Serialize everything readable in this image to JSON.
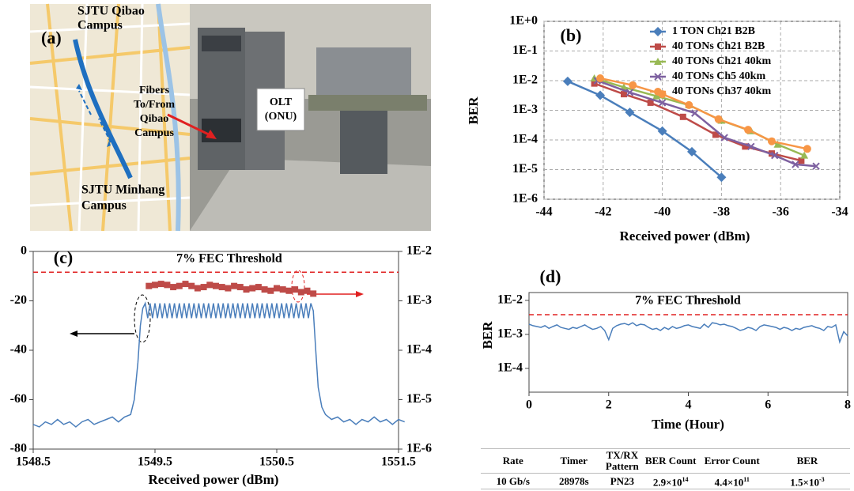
{
  "photo": {
    "label": "(a)",
    "texts": [
      "SJTU Qibao",
      "Campus",
      "Fibers",
      "To/From",
      "Qibao",
      "Campus",
      "OLT",
      "(ONU)",
      "SJTU Minhang",
      "Campus"
    ]
  },
  "chart_data": [
    {
      "type": "line",
      "label": "(b)",
      "xlabel": "Received power (dBm)",
      "ylabel": "BER",
      "ylog": true,
      "grid": true,
      "legend": "upper right",
      "xlim": [
        -44,
        -34
      ],
      "xticks": [
        -44,
        -42,
        -40,
        -38,
        -36,
        -34
      ],
      "ylim": [
        1e-06,
        1
      ],
      "yticks": [
        {
          "value": 1,
          "label": "1E+0"
        },
        {
          "value": 0.1,
          "label": "1E-1"
        },
        {
          "value": 0.01,
          "label": "1E-2"
        },
        {
          "value": 0.001,
          "label": "1E-3"
        },
        {
          "value": 0.0001,
          "label": "1E-4"
        },
        {
          "value": 1e-05,
          "label": "1E-5"
        },
        {
          "value": 1e-06,
          "label": "1E-6"
        }
      ],
      "series": [
        {
          "name": "1 TON Ch21 B2B",
          "color": "#4a7ebb",
          "marker": "diamond",
          "x": [
            -43.2,
            -42.1,
            -41.1,
            -40,
            -39,
            -38
          ],
          "values": [
            0.0095,
            0.0032,
            0.00085,
            0.0002,
            4e-05,
            5.5e-06
          ]
        },
        {
          "name": "40 TONs Ch21 B2B",
          "color": "#be4b48",
          "marker": "square",
          "x": [
            -42.3,
            -41.3,
            -40.4,
            -39.3,
            -38.2,
            -37.2,
            -36.3,
            -35.3
          ],
          "values": [
            0.008,
            0.0035,
            0.0018,
            0.0006,
            0.00015,
            6e-05,
            3.5e-05,
            2e-05
          ]
        },
        {
          "name": "40 TONs Ch21 40km",
          "color": "#98b954",
          "marker": "triangle",
          "x": [
            -42.3,
            -41.3,
            -40.2,
            -39.1,
            -38,
            -37,
            -36.1,
            -35.2
          ],
          "values": [
            0.012,
            0.006,
            0.003,
            0.0015,
            0.00045,
            0.0002,
            7e-05,
            3e-05
          ]
        },
        {
          "name": "40 TONs Ch5 40km",
          "color": "#7d60a0",
          "marker": "x",
          "x": [
            -42.2,
            -41.1,
            -40,
            -38.9,
            -37.9,
            -37,
            -36.2,
            -35.5,
            -34.8
          ],
          "values": [
            0.01,
            0.004,
            0.0018,
            0.0008,
            0.00012,
            6e-05,
            3e-05,
            1.5e-05,
            1.3e-05
          ]
        },
        {
          "name": "40 TONs Ch37 40km",
          "color": "#f79646",
          "marker": "circle",
          "x": [
            -42.1,
            -41,
            -40,
            -39.1,
            -38.1,
            -37.1,
            -36.3,
            -35.1
          ],
          "values": [
            0.012,
            0.007,
            0.0035,
            0.0015,
            0.0005,
            0.00022,
            9e-05,
            5e-05
          ]
        }
      ]
    },
    {
      "type": "line",
      "label": "(c)",
      "xlabel": "Received power (dBm)",
      "grid": false,
      "y2log": true,
      "xlim": [
        1548.5,
        1551.5
      ],
      "xticks": [
        1548.5,
        1549.5,
        1550.5,
        1551.5
      ],
      "ylim": [
        -80,
        0
      ],
      "yticks": [
        0,
        -20,
        -40,
        -60,
        -80
      ],
      "y2lim": [
        1e-06,
        0.01
      ],
      "y2ticks": [
        {
          "value": 0.01,
          "label": "1E-2"
        },
        {
          "value": 0.001,
          "label": "1E-3"
        },
        {
          "value": 0.0001,
          "label": "1E-4"
        },
        {
          "value": 1e-05,
          "label": "1E-5"
        },
        {
          "value": 1e-06,
          "label": "1E-6"
        }
      ],
      "threshold": {
        "label": "7% FEC Threshold",
        "value": 0.0038,
        "axis": "y2",
        "color": "#e02020"
      },
      "series": [
        {
          "color": "#4a7ebb",
          "axis": "y",
          "x": [
            1548.5,
            1548.55,
            1548.6,
            1548.65,
            1548.7,
            1548.75,
            1548.8,
            1548.85,
            1548.9,
            1548.95,
            1549,
            1549.05,
            1549.1,
            1549.15,
            1549.2,
            1549.25,
            1549.3,
            1549.33,
            1549.36,
            1549.38,
            1549.4,
            1549.42,
            1549.44,
            1549.46,
            1549.48,
            1549.5,
            1549.52,
            1549.54,
            1549.56,
            1549.58,
            1549.6,
            1549.62,
            1549.64,
            1549.66,
            1549.68,
            1549.7,
            1549.72,
            1549.74,
            1549.76,
            1549.78,
            1549.8,
            1549.82,
            1549.84,
            1549.86,
            1549.88,
            1549.9,
            1549.92,
            1549.94,
            1549.96,
            1549.98,
            1550,
            1550.02,
            1550.04,
            1550.06,
            1550.08,
            1550.1,
            1550.12,
            1550.14,
            1550.16,
            1550.18,
            1550.2,
            1550.22,
            1550.24,
            1550.26,
            1550.28,
            1550.3,
            1550.32,
            1550.34,
            1550.36,
            1550.38,
            1550.4,
            1550.42,
            1550.44,
            1550.46,
            1550.48,
            1550.5,
            1550.52,
            1550.54,
            1550.56,
            1550.58,
            1550.6,
            1550.62,
            1550.64,
            1550.66,
            1550.68,
            1550.7,
            1550.72,
            1550.74,
            1550.76,
            1550.78,
            1550.8,
            1550.82,
            1550.84,
            1550.87,
            1550.9,
            1550.95,
            1551,
            1551.05,
            1551.1,
            1551.15,
            1551.2,
            1551.25,
            1551.3,
            1551.35,
            1551.4,
            1551.45,
            1551.5,
            1551.55
          ],
          "values": [
            -70,
            -71,
            -69,
            -70,
            -68,
            -70,
            -69,
            -71,
            -69,
            -68,
            -70,
            -69,
            -68,
            -67,
            -69,
            -67,
            -66,
            -60,
            -45,
            -30,
            -23,
            -21,
            -27,
            -21,
            -27,
            -21,
            -27,
            -21,
            -27,
            -21,
            -27,
            -21,
            -27,
            -21,
            -27,
            -21,
            -27,
            -21,
            -27,
            -21,
            -27,
            -21,
            -27,
            -21,
            -27,
            -21,
            -27,
            -21,
            -27,
            -21,
            -27,
            -21,
            -27,
            -21,
            -27,
            -21,
            -27,
            -21,
            -27,
            -21,
            -27,
            -21,
            -27,
            -21,
            -27,
            -21,
            -27,
            -21,
            -27,
            -21,
            -27,
            -21,
            -27,
            -21,
            -27,
            -21,
            -27,
            -21,
            -27,
            -21,
            -27,
            -21,
            -27,
            -21,
            -27,
            -21,
            -27,
            -21,
            -27,
            -21,
            -24,
            -40,
            -55,
            -63,
            -66,
            -68,
            -67,
            -69,
            -68,
            -70,
            -68,
            -69,
            -67,
            -69,
            -68,
            -70,
            -68,
            -69
          ]
        },
        {
          "color": "#be4b48",
          "axis": "y2",
          "marker": "square",
          "line": false,
          "x": [
            1549.45,
            1549.5,
            1549.55,
            1549.6,
            1549.65,
            1549.7,
            1549.75,
            1549.8,
            1549.85,
            1549.9,
            1549.95,
            1550,
            1550.05,
            1550.1,
            1550.15,
            1550.2,
            1550.25,
            1550.3,
            1550.35,
            1550.4,
            1550.45,
            1550.5,
            1550.55,
            1550.6,
            1550.65,
            1550.7,
            1550.75,
            1550.8
          ],
          "values": [
            0.002,
            0.0021,
            0.0022,
            0.0021,
            0.0019,
            0.002,
            0.0022,
            0.002,
            0.0018,
            0.0019,
            0.0021,
            0.002,
            0.0019,
            0.0018,
            0.002,
            0.0019,
            0.0017,
            0.0018,
            0.0019,
            0.0017,
            0.0016,
            0.0018,
            0.0017,
            0.0016,
            0.0017,
            0.0015,
            0.0016,
            0.0014
          ]
        }
      ]
    },
    {
      "type": "line",
      "label": "(d)",
      "xlabel": "Time (Hour)",
      "ylabel": "BER",
      "ylog": true,
      "grid": false,
      "xlim": [
        0,
        8
      ],
      "xticks": [
        0,
        2,
        4,
        6,
        8
      ],
      "ylim": [
        2e-05,
        0.017
      ],
      "yticks": [
        {
          "value": 0.01,
          "label": "1E-2"
        },
        {
          "value": 0.001,
          "label": "1E-3"
        },
        {
          "value": 0.0001,
          "label": "1E-4"
        }
      ],
      "threshold": {
        "label": "7% FEC Threshold",
        "value": 0.0038,
        "axis": "y",
        "color": "#e02020"
      },
      "series": [
        {
          "color": "#4a7ebb",
          "axis": "y",
          "x": [
            0,
            0.1,
            0.2,
            0.3,
            0.4,
            0.5,
            0.6,
            0.7,
            0.8,
            0.9,
            1,
            1.1,
            1.2,
            1.3,
            1.4,
            1.5,
            1.6,
            1.7,
            1.8,
            1.9,
            2,
            2.1,
            2.2,
            2.3,
            2.4,
            2.5,
            2.6,
            2.7,
            2.8,
            2.9,
            3,
            3.1,
            3.2,
            3.3,
            3.4,
            3.5,
            3.6,
            3.7,
            3.8,
            3.9,
            4,
            4.1,
            4.2,
            4.3,
            4.4,
            4.5,
            4.6,
            4.7,
            4.8,
            4.9,
            5,
            5.1,
            5.2,
            5.3,
            5.4,
            5.5,
            5.6,
            5.7,
            5.8,
            5.9,
            6,
            6.1,
            6.2,
            6.3,
            6.4,
            6.5,
            6.6,
            6.7,
            6.8,
            6.9,
            7,
            7.1,
            7.2,
            7.3,
            7.4,
            7.5,
            7.6,
            7.7,
            7.8,
            7.9,
            8
          ],
          "values": [
            0.002,
            0.0018,
            0.0017,
            0.0016,
            0.0018,
            0.0015,
            0.0017,
            0.0019,
            0.0016,
            0.0015,
            0.0014,
            0.0016,
            0.0015,
            0.0017,
            0.0019,
            0.0016,
            0.0014,
            0.0015,
            0.0017,
            0.0013,
            0.0007,
            0.0015,
            0.0018,
            0.002,
            0.0021,
            0.0019,
            0.0022,
            0.0018,
            0.002,
            0.0019,
            0.0016,
            0.0014,
            0.0015,
            0.0013,
            0.0016,
            0.0014,
            0.0017,
            0.0015,
            0.0016,
            0.0018,
            0.0019,
            0.0017,
            0.0016,
            0.0015,
            0.002,
            0.0016,
            0.0022,
            0.0021,
            0.0019,
            0.002,
            0.0018,
            0.0017,
            0.0015,
            0.0013,
            0.0014,
            0.0016,
            0.0015,
            0.0013,
            0.0017,
            0.0019,
            0.0018,
            0.0017,
            0.0016,
            0.0014,
            0.0016,
            0.0015,
            0.0013,
            0.0015,
            0.0014,
            0.0016,
            0.0017,
            0.0018,
            0.0016,
            0.0015,
            0.0013,
            0.0017,
            0.0016,
            0.0019,
            0.0006,
            0.0012,
            0.0009
          ]
        }
      ]
    }
  ],
  "table": {
    "header": [
      "Rate",
      "Timer",
      "TX/RX Pattern",
      "BER Count",
      "Error Count",
      "BER"
    ],
    "row": [
      "10 Gb/s",
      "28978s",
      "PN23",
      {
        "mantissa": "2.9×10",
        "exponent": "14"
      },
      {
        "mantissa": "4.4×10",
        "exponent": "11"
      },
      {
        "mantissa": "1.5×10",
        "exponent": "-3"
      }
    ]
  }
}
